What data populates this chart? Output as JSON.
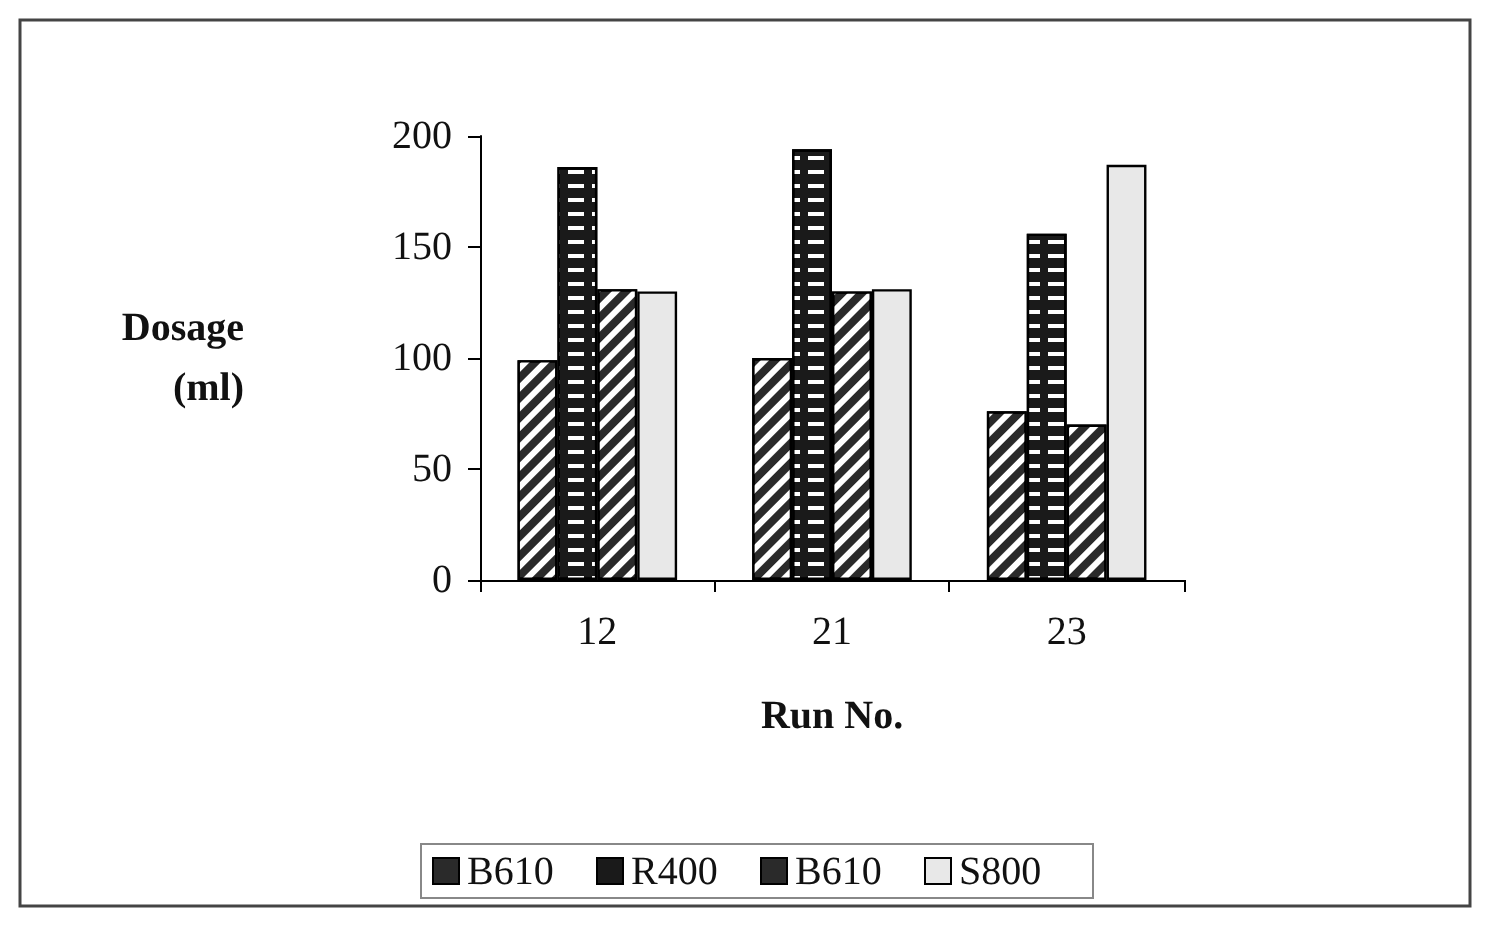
{
  "chart_data": {
    "type": "bar",
    "xlabel": "Run No.",
    "ylabel": "Dosage\n(ml)",
    "categories": [
      "12",
      "21",
      "23"
    ],
    "series": [
      {
        "name": "B610",
        "color": "#2a2a2a",
        "values": [
          99,
          100,
          76
        ]
      },
      {
        "name": "R400",
        "color": "#1a1a1a",
        "values": [
          186,
          194,
          156
        ]
      },
      {
        "name": "B610",
        "color": "#2a2a2a",
        "values": [
          131,
          130,
          70
        ]
      },
      {
        "name": "S800",
        "color": "#e8e8e8",
        "values": [
          130,
          131,
          187
        ]
      }
    ],
    "ylim": [
      0,
      200
    ],
    "yticks": [
      0,
      50,
      100,
      150,
      200
    ],
    "grid": false,
    "legend": "bottom"
  }
}
